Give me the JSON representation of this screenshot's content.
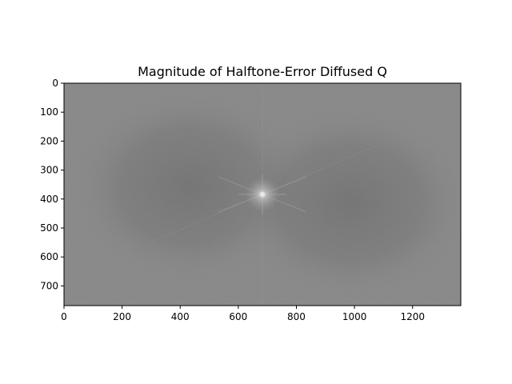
{
  "chart_data": {
    "type": "heatmap",
    "title": "Magnitude of Halftone-Error Diffused Q",
    "xlabel": "",
    "ylabel": "",
    "xlim": [
      0,
      1366
    ],
    "ylim": [
      768,
      0
    ],
    "x_ticks": [
      0,
      200,
      400,
      600,
      800,
      1000,
      1200
    ],
    "y_ticks": [
      0,
      100,
      200,
      300,
      400,
      500,
      600,
      700
    ],
    "colormap": "gray",
    "grid": false,
    "image": {
      "width": 1366,
      "height": 768,
      "center": [
        683,
        384
      ],
      "background_gray": "#858585",
      "dark_region_gray": "#6a6a6a",
      "peak_gray": "#e8e8e8"
    }
  }
}
